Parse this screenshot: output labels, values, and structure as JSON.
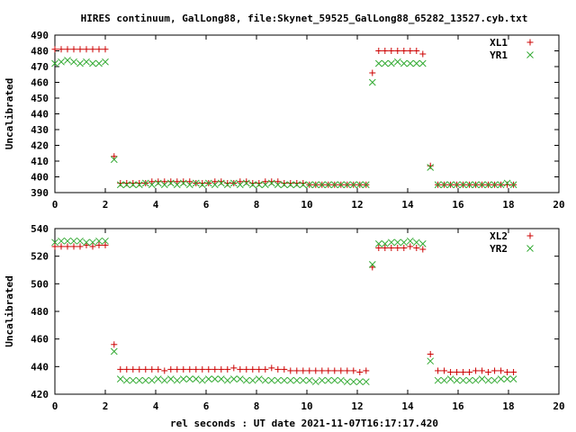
{
  "title": "HIRES continuum, GalLong88, file:Skynet_59525_GalLong88_65282_13527.cyb.txt",
  "xlabel": "rel seconds : UT date 2021-11-07T16:17:17.420",
  "colors": {
    "plus": "#cc0000",
    "cross": "#33aa33"
  },
  "chart_data": [
    {
      "type": "scatter",
      "ylabel": "Uncalibrated",
      "xlim": [
        0,
        20
      ],
      "ylim": [
        390,
        490
      ],
      "xticks": [
        0,
        2,
        4,
        6,
        8,
        10,
        12,
        14,
        16,
        18,
        20
      ],
      "yticks": [
        390,
        400,
        410,
        420,
        430,
        440,
        450,
        460,
        470,
        480,
        490
      ],
      "grid": false,
      "legend_position": "top-right",
      "series": [
        {
          "name": "XL1",
          "marker": "plus",
          "x": [
            0,
            0.25,
            0.5,
            0.75,
            1,
            1.25,
            1.5,
            1.75,
            2,
            2.35,
            2.6,
            2.85,
            3.1,
            3.35,
            3.6,
            3.85,
            4.1,
            4.35,
            4.6,
            4.85,
            5.1,
            5.35,
            5.6,
            5.85,
            6.1,
            6.35,
            6.6,
            6.85,
            7.1,
            7.35,
            7.6,
            7.85,
            8.1,
            8.35,
            8.6,
            8.85,
            9.1,
            9.35,
            9.6,
            9.85,
            10.1,
            10.35,
            10.6,
            10.85,
            11.1,
            11.35,
            11.6,
            11.85,
            12.1,
            12.35,
            12.6,
            12.85,
            13.1,
            13.35,
            13.6,
            13.85,
            14.1,
            14.35,
            14.6,
            14.9,
            15.2,
            15.45,
            15.7,
            15.95,
            16.2,
            16.45,
            16.7,
            16.95,
            17.2,
            17.45,
            17.7,
            17.95,
            18.2
          ],
          "y": [
            481,
            481,
            481,
            481,
            481,
            481,
            481,
            481,
            481,
            413,
            396,
            396,
            396,
            396,
            396,
            397,
            397,
            397,
            397,
            397,
            397,
            397,
            396,
            396,
            396,
            397,
            397,
            396,
            396,
            397,
            397,
            396,
            396,
            397,
            397,
            397,
            396,
            396,
            396,
            396,
            395,
            395,
            395,
            395,
            395,
            395,
            395,
            395,
            395,
            395,
            466,
            480,
            480,
            480,
            480,
            480,
            480,
            480,
            478,
            407,
            395,
            395,
            395,
            395,
            395,
            395,
            395,
            395,
            395,
            395,
            395,
            395,
            395
          ]
        },
        {
          "name": "YR1",
          "marker": "cross",
          "x": [
            0,
            0.25,
            0.5,
            0.75,
            1,
            1.25,
            1.5,
            1.75,
            2,
            2.35,
            2.6,
            2.85,
            3.1,
            3.35,
            3.6,
            3.85,
            4.1,
            4.35,
            4.6,
            4.85,
            5.1,
            5.35,
            5.6,
            5.85,
            6.1,
            6.35,
            6.6,
            6.85,
            7.1,
            7.35,
            7.6,
            7.85,
            8.1,
            8.35,
            8.6,
            8.85,
            9.1,
            9.35,
            9.6,
            9.85,
            10.1,
            10.35,
            10.6,
            10.85,
            11.1,
            11.35,
            11.6,
            11.85,
            12.1,
            12.35,
            12.6,
            12.85,
            13.1,
            13.35,
            13.6,
            13.85,
            14.1,
            14.35,
            14.6,
            14.9,
            15.2,
            15.45,
            15.7,
            15.95,
            16.2,
            16.45,
            16.7,
            16.95,
            17.2,
            17.45,
            17.7,
            17.95,
            18.2
          ],
          "y": [
            472,
            473,
            474,
            473,
            472,
            473,
            472,
            472,
            473,
            411,
            395,
            395,
            395,
            395,
            396,
            395,
            396,
            395,
            396,
            395,
            396,
            395,
            396,
            395,
            396,
            395,
            396,
            395,
            396,
            395,
            396,
            395,
            395,
            395,
            396,
            395,
            395,
            395,
            395,
            395,
            395,
            395,
            395,
            395,
            395,
            395,
            395,
            395,
            395,
            395,
            460,
            472,
            472,
            472,
            473,
            472,
            472,
            472,
            472,
            406,
            395,
            395,
            395,
            395,
            395,
            395,
            395,
            395,
            395,
            395,
            395,
            396,
            395
          ]
        }
      ]
    },
    {
      "type": "scatter",
      "ylabel": "Uncalibrated",
      "xlim": [
        0,
        20
      ],
      "ylim": [
        420,
        540
      ],
      "xticks": [
        0,
        2,
        4,
        6,
        8,
        10,
        12,
        14,
        16,
        18,
        20
      ],
      "yticks": [
        420,
        440,
        460,
        480,
        500,
        520,
        540
      ],
      "grid": false,
      "legend_position": "top-right",
      "series": [
        {
          "name": "XL2",
          "marker": "plus",
          "x": [
            0,
            0.25,
            0.5,
            0.75,
            1,
            1.25,
            1.5,
            1.75,
            2,
            2.35,
            2.6,
            2.85,
            3.1,
            3.35,
            3.6,
            3.85,
            4.1,
            4.35,
            4.6,
            4.85,
            5.1,
            5.35,
            5.6,
            5.85,
            6.1,
            6.35,
            6.6,
            6.85,
            7.1,
            7.35,
            7.6,
            7.85,
            8.1,
            8.35,
            8.6,
            8.85,
            9.1,
            9.35,
            9.6,
            9.85,
            10.1,
            10.35,
            10.6,
            10.85,
            11.1,
            11.35,
            11.6,
            11.85,
            12.1,
            12.35,
            12.6,
            12.85,
            13.1,
            13.35,
            13.6,
            13.85,
            14.1,
            14.35,
            14.6,
            14.9,
            15.2,
            15.45,
            15.7,
            15.95,
            16.2,
            16.45,
            16.7,
            16.95,
            17.2,
            17.45,
            17.7,
            17.95,
            18.2
          ],
          "y": [
            527,
            527,
            527,
            527,
            527,
            528,
            527,
            528,
            528,
            456,
            438,
            438,
            438,
            438,
            438,
            438,
            438,
            437,
            438,
            438,
            438,
            438,
            438,
            438,
            438,
            438,
            438,
            438,
            439,
            438,
            438,
            438,
            438,
            438,
            439,
            438,
            438,
            437,
            437,
            437,
            437,
            437,
            437,
            437,
            437,
            437,
            437,
            437,
            436,
            437,
            512,
            526,
            526,
            526,
            526,
            526,
            527,
            526,
            525,
            449,
            437,
            437,
            436,
            436,
            436,
            436,
            437,
            437,
            436,
            437,
            437,
            436,
            436
          ]
        },
        {
          "name": "YR2",
          "marker": "cross",
          "x": [
            0,
            0.25,
            0.5,
            0.75,
            1,
            1.25,
            1.5,
            1.75,
            2,
            2.35,
            2.6,
            2.85,
            3.1,
            3.35,
            3.6,
            3.85,
            4.1,
            4.35,
            4.6,
            4.85,
            5.1,
            5.35,
            5.6,
            5.85,
            6.1,
            6.35,
            6.6,
            6.85,
            7.1,
            7.35,
            7.6,
            7.85,
            8.1,
            8.35,
            8.6,
            8.85,
            9.1,
            9.35,
            9.6,
            9.85,
            10.1,
            10.35,
            10.6,
            10.85,
            11.1,
            11.35,
            11.6,
            11.85,
            12.1,
            12.35,
            12.6,
            12.85,
            13.1,
            13.35,
            13.6,
            13.85,
            14.1,
            14.35,
            14.6,
            14.9,
            15.2,
            15.45,
            15.7,
            15.95,
            16.2,
            16.45,
            16.7,
            16.95,
            17.2,
            17.45,
            17.7,
            17.95,
            18.2
          ],
          "y": [
            530,
            531,
            531,
            531,
            531,
            530,
            530,
            531,
            531,
            451,
            431,
            430,
            430,
            430,
            430,
            430,
            431,
            430,
            431,
            430,
            431,
            431,
            431,
            430,
            431,
            431,
            431,
            430,
            431,
            431,
            430,
            430,
            431,
            430,
            430,
            430,
            430,
            430,
            430,
            430,
            430,
            429,
            430,
            430,
            430,
            430,
            429,
            429,
            429,
            429,
            514,
            529,
            529,
            530,
            530,
            530,
            531,
            530,
            529,
            444,
            430,
            430,
            431,
            430,
            430,
            430,
            430,
            431,
            430,
            430,
            431,
            431,
            431
          ]
        }
      ]
    }
  ]
}
